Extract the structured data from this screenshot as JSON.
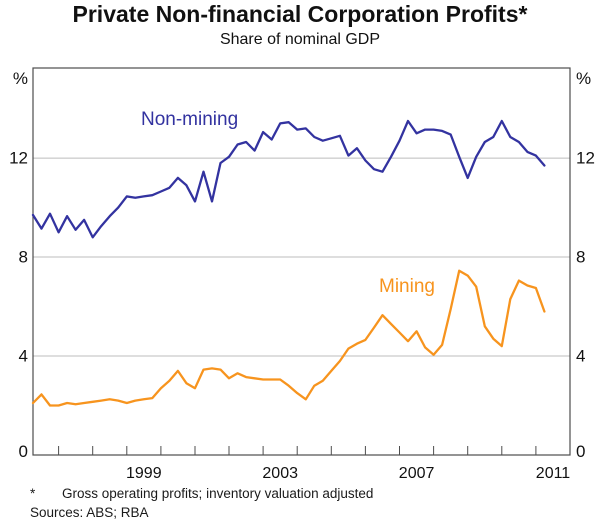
{
  "chart": {
    "title": "Private Non-financial Corporation Profits*",
    "subtitle": "Share of nominal GDP",
    "footnote_marker": "*",
    "footnote_text": "Gross operating profits; inventory valuation adjusted",
    "sources": "Sources: ABS; RBA"
  },
  "chart_data": {
    "type": "line",
    "title": "Private Non-financial Corporation Profits*",
    "subtitle": "Share of nominal GDP",
    "ylabel": "%",
    "xlabel": "",
    "grid": "horizontal-only",
    "legend_position": "inline-labels",
    "xlim": [
      1996.25,
      2012.0
    ],
    "ylim": [
      0,
      15.64
    ],
    "x_start": 1996.25,
    "x_step": 0.25,
    "frequency": "quarterly",
    "x_tick_start": 1997,
    "x_tick_end": 2011,
    "x_labels": [
      1999,
      2003,
      2007,
      2011
    ],
    "y_tick_values": [
      0,
      4,
      8,
      12
    ],
    "y_tick_labels": [
      "0",
      "4",
      "8",
      "12"
    ],
    "y_unit_label": "%",
    "colors": {
      "gridline": "#bcbcbc",
      "frame": "#4d4d4d",
      "non_mining": "#3333a0",
      "mining": "#f7941e"
    },
    "series": [
      {
        "name": "Non-mining",
        "color": "#3333a0",
        "values": [
          9.7,
          9.15,
          9.75,
          9.0,
          9.65,
          9.1,
          9.5,
          8.8,
          9.25,
          9.65,
          10.0,
          10.45,
          10.4,
          10.45,
          10.5,
          10.65,
          10.8,
          11.2,
          10.9,
          10.25,
          11.45,
          10.25,
          11.8,
          12.05,
          12.55,
          12.65,
          12.3,
          13.05,
          12.75,
          13.4,
          13.45,
          13.15,
          13.2,
          12.85,
          12.7,
          12.8,
          12.9,
          12.1,
          12.4,
          11.9,
          11.55,
          11.45,
          12.05,
          12.7,
          13.5,
          13.0,
          13.15,
          13.15,
          13.1,
          12.95,
          12.05,
          11.2,
          12.05,
          12.65,
          12.85,
          13.5,
          12.85,
          12.65,
          12.25,
          12.1,
          11.7
        ]
      },
      {
        "name": "Mining",
        "color": "#f7941e",
        "values": [
          2.1,
          2.45,
          2.0,
          2.0,
          2.1,
          2.05,
          2.1,
          2.15,
          2.2,
          2.25,
          2.2,
          2.1,
          2.2,
          2.25,
          2.3,
          2.7,
          3.0,
          3.4,
          2.9,
          2.7,
          3.45,
          3.5,
          3.45,
          3.1,
          3.3,
          3.15,
          3.1,
          3.05,
          3.05,
          3.05,
          2.8,
          2.5,
          2.25,
          2.8,
          3.0,
          3.4,
          3.8,
          4.3,
          4.5,
          4.65,
          5.15,
          5.65,
          5.3,
          4.95,
          4.6,
          5.0,
          4.35,
          4.05,
          4.45,
          5.9,
          7.45,
          7.25,
          6.8,
          5.2,
          4.7,
          4.4,
          6.3,
          7.05,
          6.85,
          6.75,
          5.8
        ]
      }
    ]
  }
}
